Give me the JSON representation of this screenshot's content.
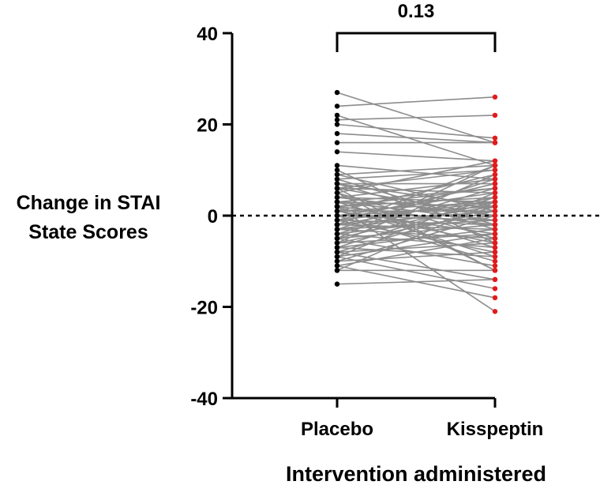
{
  "chart_data": {
    "type": "scatter",
    "subtype": "paired-before-after",
    "title": "",
    "ylabel_lines": [
      "Change in STAI",
      "State Scores"
    ],
    "xlabel": "Intervention administered",
    "categories": [
      "Placebo",
      "Kisspeptin"
    ],
    "ylim": [
      -40,
      40
    ],
    "yticks": [
      -40,
      -20,
      0,
      20,
      40
    ],
    "reference_line": {
      "y": 0,
      "style": "dashed"
    },
    "annotation": {
      "text": "0.13",
      "type": "bracket",
      "between": [
        "Placebo",
        "Kisspeptin"
      ]
    },
    "point_colors": {
      "Placebo": "#000000",
      "Kisspeptin": "#e31a1c"
    },
    "line_color": "#8c8c8c",
    "pairs": [
      [
        27,
        16
      ],
      [
        24,
        26
      ],
      [
        22,
        11
      ],
      [
        21,
        22
      ],
      [
        20,
        17
      ],
      [
        18,
        16
      ],
      [
        16,
        16
      ],
      [
        14,
        12
      ],
      [
        11,
        8
      ],
      [
        9,
        11
      ],
      [
        9,
        1
      ],
      [
        8,
        -2
      ],
      [
        8,
        10
      ],
      [
        7,
        7
      ],
      [
        7,
        2
      ],
      [
        7,
        -3
      ],
      [
        6,
        5
      ],
      [
        6,
        10
      ],
      [
        6,
        0
      ],
      [
        5,
        12
      ],
      [
        5,
        -5
      ],
      [
        5,
        -12
      ],
      [
        4,
        3
      ],
      [
        4,
        8
      ],
      [
        4,
        0
      ],
      [
        3,
        -1
      ],
      [
        3,
        6
      ],
      [
        3,
        -7
      ],
      [
        3,
        2
      ],
      [
        2,
        4
      ],
      [
        2,
        -2
      ],
      [
        2,
        6
      ],
      [
        2,
        -9
      ],
      [
        1,
        1
      ],
      [
        1,
        -4
      ],
      [
        1,
        9
      ],
      [
        1,
        3
      ],
      [
        1,
        -6
      ],
      [
        0,
        2
      ],
      [
        0,
        -1
      ],
      [
        0,
        5
      ],
      [
        0,
        -10
      ],
      [
        0,
        0
      ],
      [
        -1,
        3
      ],
      [
        -1,
        -2
      ],
      [
        -1,
        7
      ],
      [
        -1,
        -8
      ],
      [
        -2,
        1
      ],
      [
        -2,
        -3
      ],
      [
        -2,
        4
      ],
      [
        -2,
        11
      ],
      [
        -3,
        -1
      ],
      [
        -3,
        -5
      ],
      [
        -3,
        2
      ],
      [
        -4,
        0
      ],
      [
        -4,
        -7
      ],
      [
        -4,
        6
      ],
      [
        -5,
        -2
      ],
      [
        -5,
        3
      ],
      [
        -5,
        -11
      ],
      [
        -6,
        -4
      ],
      [
        -6,
        1
      ],
      [
        -6,
        9
      ],
      [
        -7,
        -3
      ],
      [
        -7,
        -9
      ],
      [
        -7,
        4
      ],
      [
        -8,
        -6
      ],
      [
        -8,
        2
      ],
      [
        -8,
        -14
      ],
      [
        -9,
        -4
      ],
      [
        -9,
        5
      ],
      [
        -9,
        -16
      ],
      [
        -10,
        -8
      ],
      [
        -10,
        0
      ],
      [
        -11,
        -5
      ],
      [
        -11,
        -18
      ],
      [
        -12,
        -12
      ],
      [
        -12,
        3
      ],
      [
        -15,
        -14
      ],
      [
        2,
        -21
      ],
      [
        -5,
        11
      ],
      [
        10,
        -6
      ],
      [
        -3,
        8
      ],
      [
        6,
        -12
      ]
    ]
  }
}
